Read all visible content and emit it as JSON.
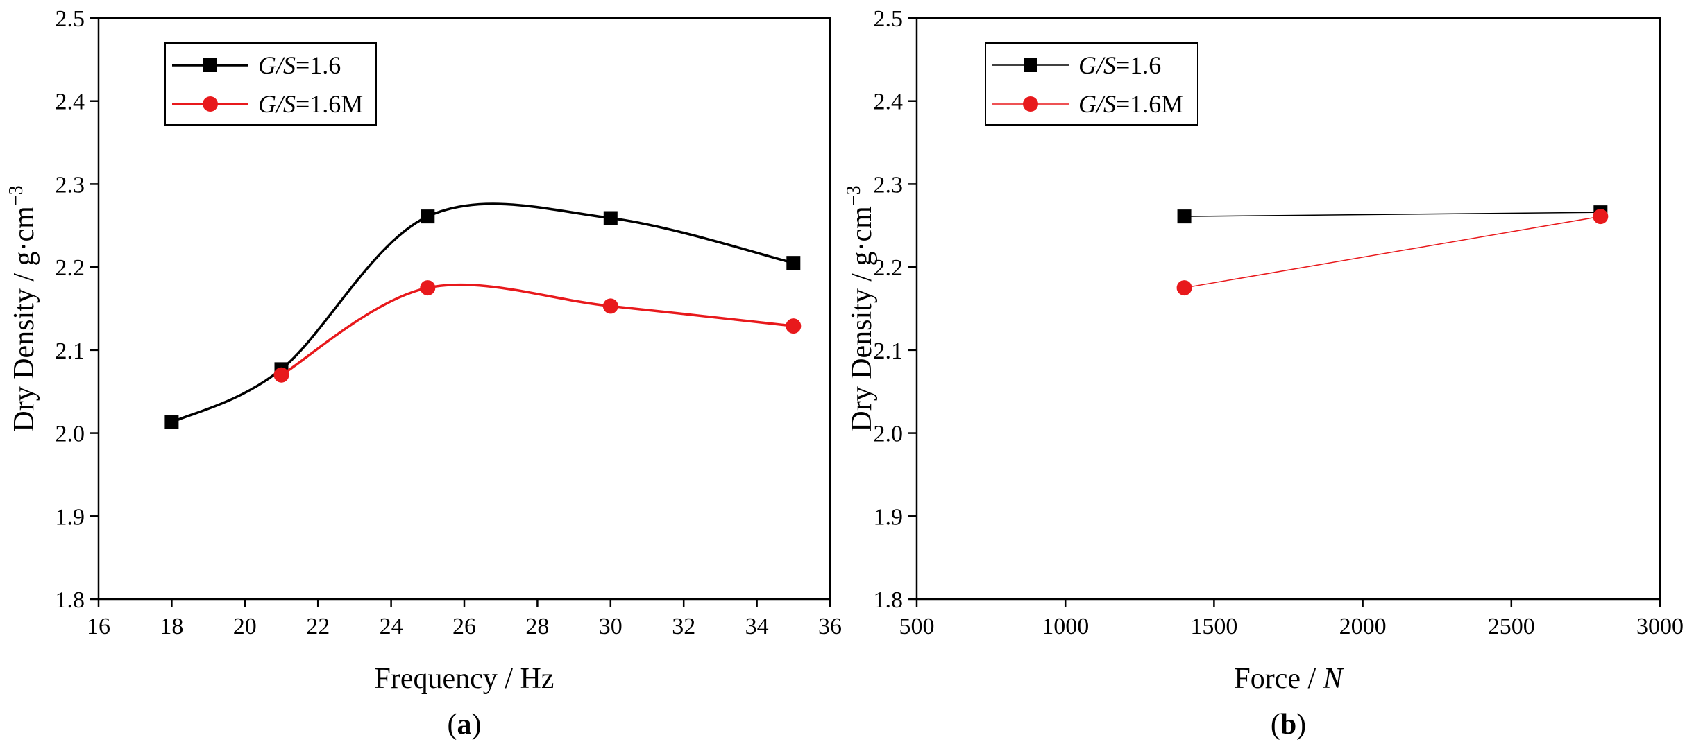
{
  "chart_data": [
    {
      "id": "a",
      "type": "line",
      "panel_label": "a",
      "xlabel": "Frequency / Hz",
      "ylabel": "Dry Density / g·cm⁻³",
      "xlim": [
        16,
        36
      ],
      "ylim": [
        1.8,
        2.5
      ],
      "xticks": [
        "16",
        "18",
        "20",
        "22",
        "24",
        "26",
        "28",
        "30",
        "32",
        "34",
        "36"
      ],
      "yticks": [
        "1.8",
        "1.9",
        "2.0",
        "2.1",
        "2.2",
        "2.3",
        "2.4",
        "2.5"
      ],
      "smooth": true,
      "legend_position": "top-left",
      "series": [
        {
          "name": "G/S=1.6",
          "italic_part": "G/S",
          "value_part": "=1.6",
          "color": "#000000",
          "marker": "square",
          "x": [
            18,
            21,
            25,
            30,
            35
          ],
          "y": [
            2.013,
            2.077,
            2.261,
            2.259,
            2.205
          ]
        },
        {
          "name": "G/S=1.6M",
          "italic_part": "G/S",
          "value_part": "=1.6M",
          "color": "#e8191c",
          "marker": "circle",
          "x": [
            21,
            25,
            30,
            35
          ],
          "y": [
            2.07,
            2.175,
            2.153,
            2.129
          ]
        }
      ]
    },
    {
      "id": "b",
      "type": "line",
      "panel_label": "b",
      "xlabel_prefix": "Force / ",
      "xlabel_unit": "N",
      "ylabel": "Dry Density / g·cm⁻³",
      "xlim": [
        500,
        3000
      ],
      "ylim": [
        1.8,
        2.5
      ],
      "xticks": [
        "500",
        "1000",
        "1500",
        "2000",
        "2500",
        "3000"
      ],
      "yticks": [
        "1.8",
        "1.9",
        "2.0",
        "2.1",
        "2.2",
        "2.3",
        "2.4",
        "2.5"
      ],
      "smooth": false,
      "legend_position": "top-left",
      "series": [
        {
          "name": "G/S=1.6",
          "italic_part": "G/S",
          "value_part": "=1.6",
          "color": "#000000",
          "marker": "square",
          "x": [
            1400,
            2800
          ],
          "y": [
            2.261,
            2.266
          ]
        },
        {
          "name": "G/S=1.6M",
          "italic_part": "G/S",
          "value_part": "=1.6M",
          "color": "#e8191c",
          "marker": "circle",
          "x": [
            1400,
            2800
          ],
          "y": [
            2.175,
            2.261
          ]
        }
      ]
    }
  ]
}
